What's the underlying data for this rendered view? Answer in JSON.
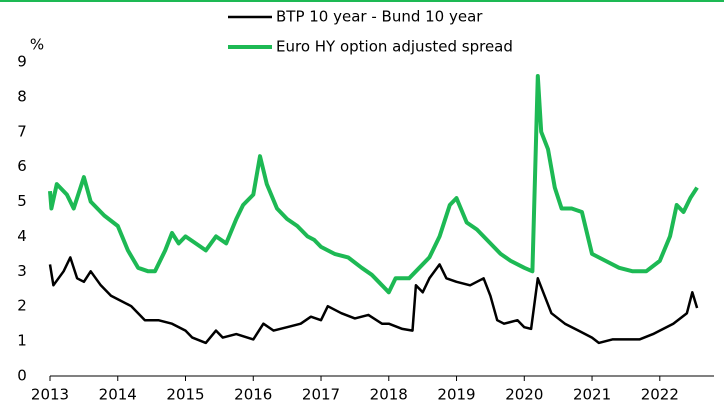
{
  "chart_data": {
    "type": "line",
    "y_label": "%",
    "xlim": [
      2013,
      2022.8
    ],
    "xticks": [
      2013,
      2014,
      2015,
      2016,
      2017,
      2018,
      2019,
      2020,
      2021,
      2022
    ],
    "ylim": [
      0,
      9
    ],
    "yticks": [
      0,
      1,
      2,
      3,
      4,
      5,
      6,
      7,
      8,
      9
    ],
    "grid": false,
    "series": [
      {
        "name": "BTP 10 year - Bund 10 year",
        "color": "#000000",
        "x": [
          2013.0,
          2013.05,
          2013.2,
          2013.3,
          2013.4,
          2013.5,
          2013.6,
          2013.75,
          2013.9,
          2014.0,
          2014.2,
          2014.4,
          2014.6,
          2014.8,
          2015.0,
          2015.1,
          2015.3,
          2015.45,
          2015.55,
          2015.75,
          2016.0,
          2016.15,
          2016.3,
          2016.5,
          2016.7,
          2016.85,
          2017.0,
          2017.1,
          2017.3,
          2017.5,
          2017.7,
          2017.9,
          2018.0,
          2018.2,
          2018.35,
          2018.4,
          2018.5,
          2018.6,
          2018.75,
          2018.85,
          2019.0,
          2019.2,
          2019.4,
          2019.5,
          2019.6,
          2019.7,
          2019.9,
          2020.0,
          2020.1,
          2020.2,
          2020.3,
          2020.4,
          2020.6,
          2020.8,
          2021.0,
          2021.1,
          2021.3,
          2021.5,
          2021.7,
          2021.9,
          2022.0,
          2022.2,
          2022.4,
          2022.48,
          2022.55
        ],
        "values": [
          3.2,
          2.6,
          3.0,
          3.4,
          2.8,
          2.7,
          3.0,
          2.6,
          2.3,
          2.2,
          2.0,
          1.6,
          1.6,
          1.5,
          1.3,
          1.1,
          0.95,
          1.3,
          1.1,
          1.2,
          1.05,
          1.5,
          1.3,
          1.4,
          1.5,
          1.7,
          1.6,
          2.0,
          1.8,
          1.65,
          1.75,
          1.5,
          1.5,
          1.35,
          1.3,
          2.6,
          2.4,
          2.8,
          3.2,
          2.8,
          2.7,
          2.6,
          2.8,
          2.3,
          1.6,
          1.5,
          1.6,
          1.4,
          1.35,
          2.8,
          2.3,
          1.8,
          1.5,
          1.3,
          1.1,
          0.95,
          1.05,
          1.05,
          1.05,
          1.2,
          1.3,
          1.5,
          1.8,
          2.4,
          1.95
        ]
      },
      {
        "name": "Euro HY option adjusted spread",
        "color": "#1db954",
        "x": [
          2013.0,
          2013.02,
          2013.1,
          2013.25,
          2013.35,
          2013.5,
          2013.6,
          2013.8,
          2014.0,
          2014.15,
          2014.3,
          2014.45,
          2014.55,
          2014.7,
          2014.8,
          2014.9,
          2015.0,
          2015.15,
          2015.3,
          2015.45,
          2015.6,
          2015.75,
          2015.85,
          2016.0,
          2016.1,
          2016.2,
          2016.35,
          2016.5,
          2016.65,
          2016.8,
          2016.9,
          2017.0,
          2017.2,
          2017.4,
          2017.6,
          2017.75,
          2017.9,
          2018.0,
          2018.1,
          2018.3,
          2018.45,
          2018.6,
          2018.75,
          2018.9,
          2019.0,
          2019.15,
          2019.3,
          2019.5,
          2019.65,
          2019.8,
          2020.0,
          2020.12,
          2020.2,
          2020.25,
          2020.35,
          2020.45,
          2020.55,
          2020.7,
          2020.85,
          2021.0,
          2021.2,
          2021.4,
          2021.6,
          2021.8,
          2022.0,
          2022.15,
          2022.25,
          2022.35,
          2022.45,
          2022.55
        ],
        "values": [
          5.3,
          4.8,
          5.5,
          5.2,
          4.8,
          5.7,
          5.0,
          4.6,
          4.3,
          3.6,
          3.1,
          3.0,
          3.0,
          3.6,
          4.1,
          3.8,
          4.0,
          3.8,
          3.6,
          4.0,
          3.8,
          4.5,
          4.9,
          5.2,
          6.3,
          5.5,
          4.8,
          4.5,
          4.3,
          4.0,
          3.9,
          3.7,
          3.5,
          3.4,
          3.1,
          2.9,
          2.6,
          2.4,
          2.8,
          2.8,
          3.1,
          3.4,
          4.0,
          4.9,
          5.1,
          4.4,
          4.2,
          3.8,
          3.5,
          3.3,
          3.1,
          3.0,
          8.6,
          7.0,
          6.5,
          5.4,
          4.8,
          4.8,
          4.7,
          3.5,
          3.3,
          3.1,
          3.0,
          3.0,
          3.3,
          4.0,
          4.9,
          4.7,
          5.1,
          5.4
        ]
      }
    ]
  }
}
